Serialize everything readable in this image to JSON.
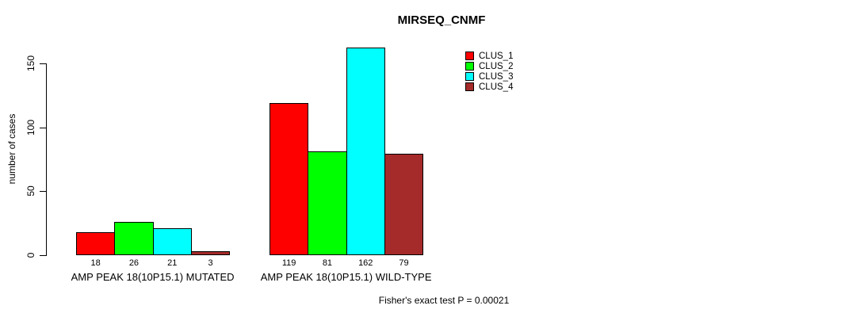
{
  "title": "MIRSEQ_CNMF",
  "footer": "Fisher's exact test P = 0.00021",
  "y_axis": {
    "label": "number of cases",
    "ticks": [
      0,
      50,
      100,
      150
    ]
  },
  "colors": {
    "clus_1": "#FF0000",
    "clus_2": "#00FF00",
    "clus_3": "#00FFFF",
    "clus_4": "#A52A2A",
    "axis": "#000000",
    "background": "#FFFFFF"
  },
  "chart_data": {
    "type": "bar",
    "categories": [
      "AMP PEAK 18(10P15.1) MUTATED",
      "AMP PEAK 18(10P15.1) WILD-TYPE"
    ],
    "series": [
      {
        "name": "CLUS_1",
        "color": "#FF0000",
        "values": [
          18,
          119
        ]
      },
      {
        "name": "CLUS_2",
        "color": "#00FF00",
        "values": [
          26,
          81
        ]
      },
      {
        "name": "CLUS_3",
        "color": "#00FFFF",
        "values": [
          21,
          162
        ]
      },
      {
        "name": "CLUS_4",
        "color": "#A52A2A",
        "values": [
          3,
          79
        ]
      }
    ],
    "title": "MIRSEQ_CNMF",
    "xlabel": "",
    "ylabel": "number of cases",
    "ylim": [
      0,
      170
    ],
    "ytick_values": [
      0,
      50,
      100,
      150
    ],
    "bar_value_labels_shown": true,
    "grid": false,
    "legend_position": "right",
    "annotations": [
      "Fisher's exact test P = 0.00021"
    ]
  }
}
